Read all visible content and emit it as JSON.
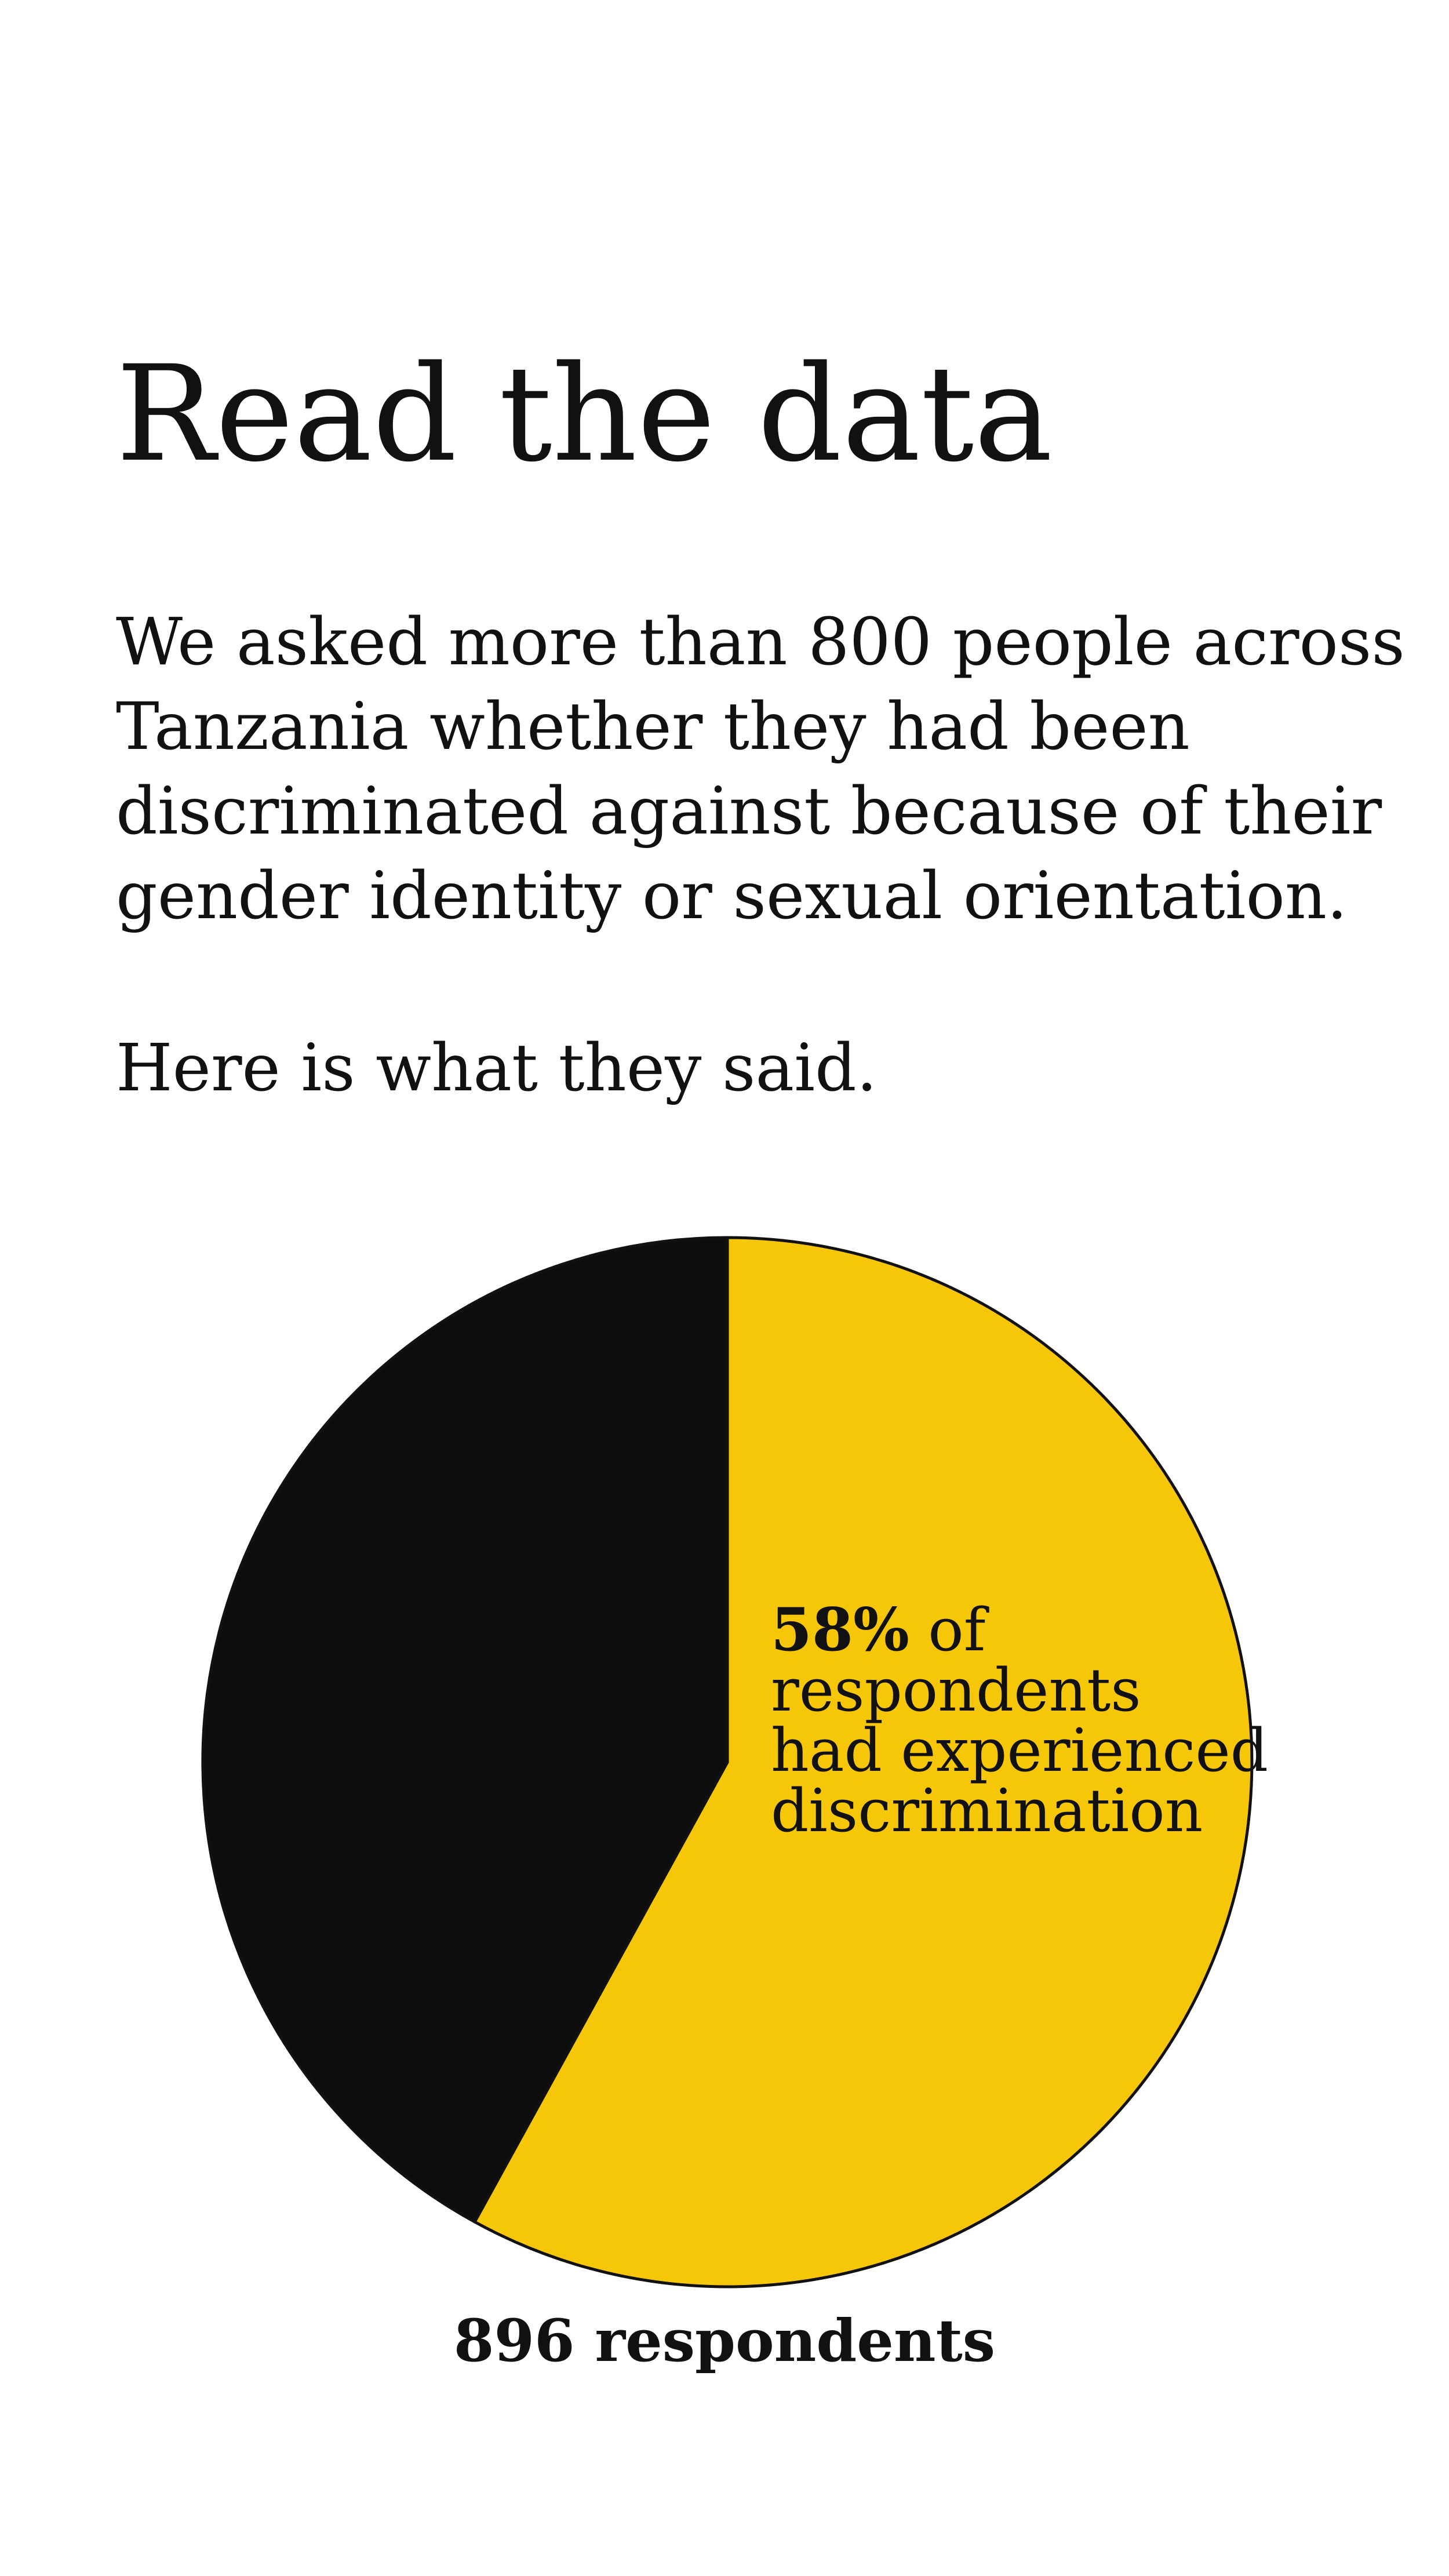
{
  "title": "Read the data",
  "intro": {
    "lines": [
      "We asked more than 800 people across",
      "Tanzania whether they had been",
      "discriminated against because of their",
      "gender identity or sexual orientation."
    ],
    "followup": "Here is what they said."
  },
  "chart_data": {
    "type": "pie",
    "slices": [
      {
        "value": 58,
        "color": "#F6C708"
      },
      {
        "value": 42,
        "color": "#0D0D0D"
      }
    ],
    "callout": {
      "percent": "58%",
      "lines": [
        " of",
        "respondents",
        "had experienced",
        "discrimination"
      ]
    },
    "total_label": "896 respondents"
  }
}
